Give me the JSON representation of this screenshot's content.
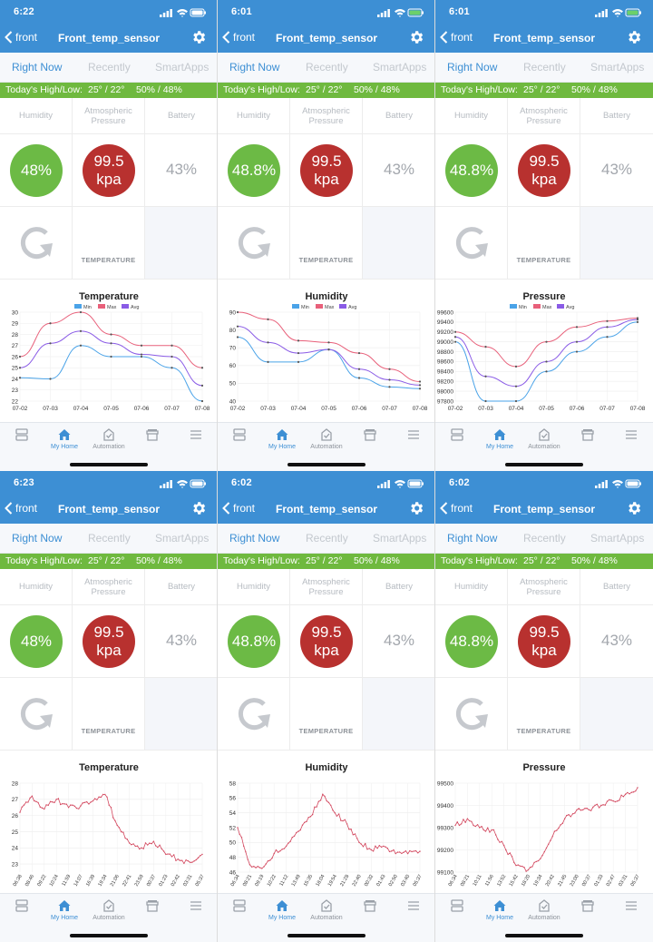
{
  "common": {
    "back_label": "front",
    "title": "Front_temp_sensor",
    "tabs": [
      "Right Now",
      "Recently",
      "SmartApps"
    ],
    "banner_label": "Today's High/Low:",
    "banner_temp": "25° / 22°",
    "banner_hum": "50% / 48%",
    "tile_humidity": "Humidity",
    "tile_pressure_1": "Atmospheric",
    "tile_pressure_2": "Pressure",
    "tile_battery": "Battery",
    "pressure_value": "99.5",
    "pressure_unit": "kpa",
    "battery_value": "43%",
    "temperature_label": "TEMPERATURE",
    "tab_home": "My Home",
    "tab_automation": "Automation",
    "legend": [
      "Min",
      "Max",
      "Avg"
    ],
    "colors": {
      "header": "#3d8fd4",
      "banner": "#6fb93f",
      "green": "#6cba45",
      "red": "#b8312f",
      "min": "#4aa3e8",
      "max": "#e8607a",
      "avg": "#8a5be6",
      "single": "#d3485f"
    }
  },
  "panels": [
    {
      "time": "6:22",
      "humidity": "48%",
      "chart_data": {
        "type": "line",
        "title": "Temperature",
        "x": [
          "07-02",
          "07-03",
          "07-04",
          "07-05",
          "07-06",
          "07-07",
          "07-08"
        ],
        "ylim": [
          22,
          30
        ],
        "yticks": [
          22,
          23,
          24,
          25,
          26,
          27,
          28,
          29,
          30
        ],
        "series": [
          {
            "name": "Min",
            "values": [
              24.1,
              24.0,
              27.0,
              26.0,
              26.0,
              25.0,
              22.0
            ]
          },
          {
            "name": "Max",
            "values": [
              26.0,
              29.0,
              30.0,
              28.0,
              27.0,
              27.0,
              25.0
            ]
          },
          {
            "name": "Avg",
            "values": [
              25.0,
              27.2,
              28.3,
              27.2,
              26.2,
              26.0,
              23.4
            ]
          }
        ]
      }
    },
    {
      "time": "6:01",
      "humidity": "48.8%",
      "chart_data": {
        "type": "line",
        "title": "Humidity",
        "x": [
          "07-02",
          "07-03",
          "07-04",
          "07-05",
          "07-06",
          "07-07",
          "07-08"
        ],
        "ylim": [
          40,
          90
        ],
        "yticks": [
          40,
          50,
          60,
          70,
          80,
          90
        ],
        "series": [
          {
            "name": "Min",
            "values": [
              76,
              62,
              62,
              69,
              53,
              48,
              47
            ]
          },
          {
            "name": "Max",
            "values": [
              90,
              86,
              74,
              73,
              67,
              58,
              51
            ]
          },
          {
            "name": "Avg",
            "values": [
              82,
              73,
              67,
              69,
              58,
              52,
              49
            ]
          }
        ]
      }
    },
    {
      "time": "6:01",
      "humidity": "48.8%",
      "chart_data": {
        "type": "line",
        "title": "Pressure",
        "x": [
          "07-02",
          "07-03",
          "07-04",
          "07-05",
          "07-06",
          "07-07",
          "07-08"
        ],
        "ylim": [
          97800,
          99600
        ],
        "yticks": [
          97800,
          98000,
          98200,
          98400,
          98600,
          98800,
          99000,
          99200,
          99400,
          99600
        ],
        "series": [
          {
            "name": "Min",
            "values": [
              99000,
              97800,
              97800,
              98400,
              98800,
              99100,
              99400
            ]
          },
          {
            "name": "Max",
            "values": [
              99200,
              98900,
              98500,
              99000,
              99300,
              99420,
              99480
            ]
          },
          {
            "name": "Avg",
            "values": [
              99100,
              98300,
              98100,
              98600,
              99000,
              99300,
              99450
            ]
          }
        ]
      }
    },
    {
      "time": "6:23",
      "humidity": "48%",
      "chart_data": {
        "type": "line",
        "title": "Temperature",
        "x": [
          "06:38",
          "08:46",
          "09:22",
          "10:24",
          "11:59",
          "14:07",
          "16:39",
          "19:34",
          "21:06",
          "22:41",
          "23:59",
          "00:37",
          "01:23",
          "02:42",
          "03:31",
          "05:37"
        ],
        "ylim": [
          22.5,
          28
        ],
        "yticks": [
          23,
          24,
          25,
          26,
          27,
          28
        ],
        "series": [
          {
            "name": "",
            "values": [
              26.2,
              27.2,
              26.4,
              27.0,
              26.5,
              26.6,
              26.9,
              27.3,
              25.4,
              24.3,
              24.0,
              24.4,
              23.6,
              23.3,
              23.1,
              23.6
            ]
          }
        ]
      }
    },
    {
      "time": "6:02",
      "humidity": "48.8%",
      "chart_data": {
        "type": "line",
        "title": "Humidity",
        "x": [
          "06:34",
          "08:21",
          "09:19",
          "10:22",
          "11:12",
          "13:49",
          "15:35",
          "18:04",
          "19:54",
          "21:28",
          "22:40",
          "00:32",
          "01:43",
          "02:50",
          "03:40",
          "05:37"
        ],
        "ylim": [
          46,
          58
        ],
        "yticks": [
          46,
          48,
          50,
          52,
          54,
          56,
          58
        ],
        "series": [
          {
            "name": "",
            "values": [
              52,
              47,
              46.5,
              48.5,
              49.5,
              51.5,
              53.5,
              56.5,
              54,
              52.5,
              50,
              49,
              49.5,
              48.5,
              48.5,
              48.8
            ]
          }
        ]
      }
    },
    {
      "time": "6:02",
      "humidity": "48.8%",
      "chart_data": {
        "type": "line",
        "title": "Pressure",
        "x": [
          "06:34",
          "08:21",
          "10:11",
          "11:56",
          "13:52",
          "15:42",
          "18:20",
          "19:34",
          "20:42",
          "21:45",
          "23:00",
          "00:37",
          "01:33",
          "02:47",
          "03:31",
          "05:37"
        ],
        "ylim": [
          99100,
          99500
        ],
        "yticks": [
          99100,
          99200,
          99300,
          99400,
          99500
        ],
        "series": [
          {
            "name": "",
            "values": [
              99310,
              99340,
              99300,
              99290,
              99220,
              99130,
              99110,
              99160,
              99260,
              99340,
              99380,
              99380,
              99400,
              99420,
              99450,
              99480
            ]
          }
        ]
      }
    }
  ]
}
